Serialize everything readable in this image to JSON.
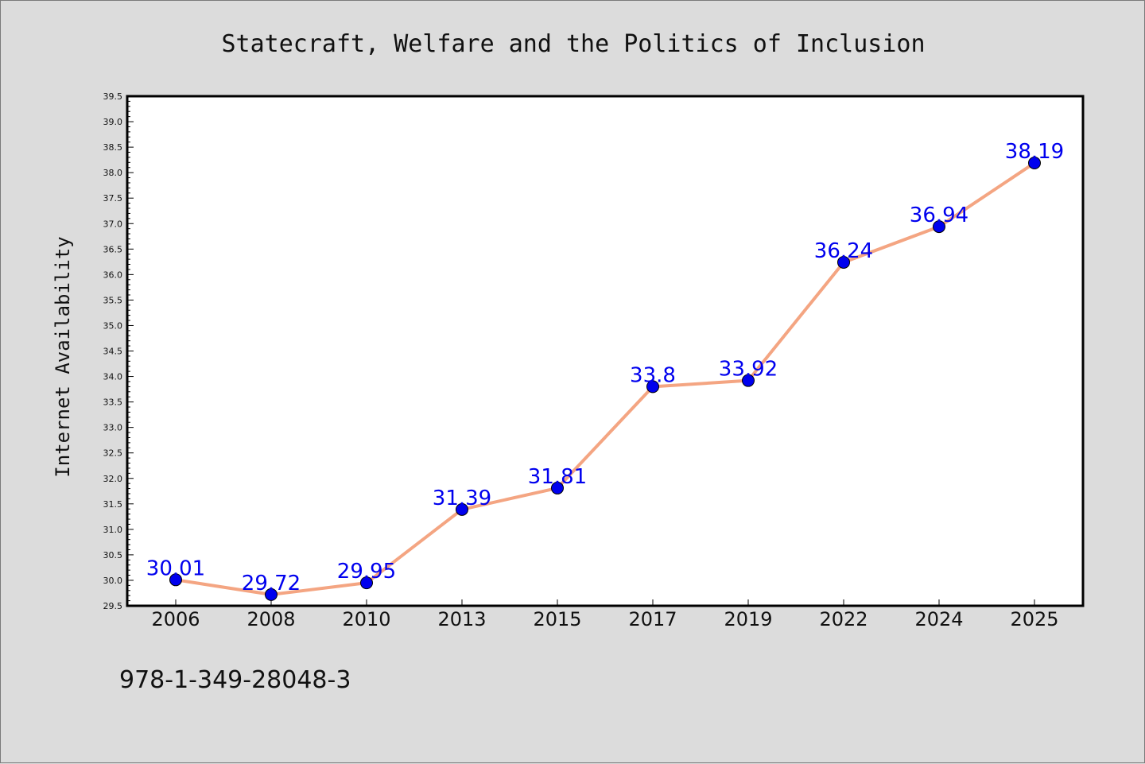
{
  "chart_data": {
    "type": "line",
    "title": "Statecraft, Welfare and the Politics of Inclusion",
    "xlabel": "",
    "ylabel": "Internet Availability",
    "categories": [
      "2006",
      "2008",
      "2010",
      "2013",
      "2015",
      "2017",
      "2019",
      "2022",
      "2024",
      "2025"
    ],
    "series": [
      {
        "values": [
          30.01,
          29.72,
          29.95,
          31.39,
          31.81,
          33.8,
          33.92,
          36.24,
          36.94,
          38.19
        ],
        "labels": [
          "30.01",
          "29.72",
          "29.95",
          "31.39",
          "31.81",
          "33.8",
          "33.92",
          "36.24",
          "36.94",
          "38.19"
        ],
        "line_color": "#f4a582",
        "marker_color": "#0000ee",
        "label_color": "#0000ee"
      }
    ],
    "ylim": [
      29.5,
      39.5
    ],
    "ytick_step": 0.5,
    "ytick_minor_step": 0.1,
    "grid": false,
    "legend": "none"
  },
  "footer": {
    "isbn": "978-1-349-28048-3"
  },
  "colors": {
    "figure_background": "#dcdcdc",
    "plot_background": "#ffffff",
    "axes_frame": "#000000"
  }
}
